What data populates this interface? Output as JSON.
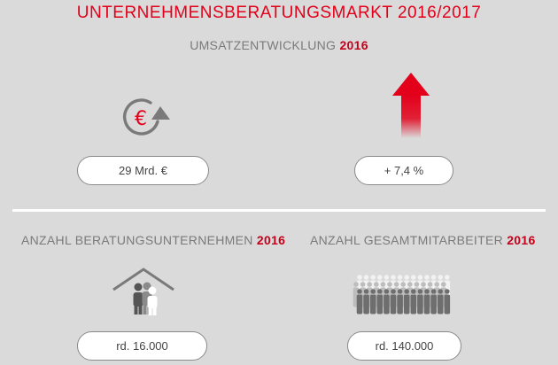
{
  "title": "UNTERNEHMENSBERATUNGSMARKT 2016/2017",
  "revenue": {
    "heading": "UMSATZENTWICKLUNG",
    "year": "2016",
    "value": "29 Mrd. €",
    "growth": "+ 7,4 %",
    "currency_icon": "euro-cycle-icon",
    "growth_icon": "up-arrow-icon"
  },
  "companies": {
    "heading": "ANZAHL BERATUNGSUNTERNEHMEN",
    "year": "2016",
    "value": "rd. 16.000",
    "icon": "house-people-icon"
  },
  "employees": {
    "heading": "ANZAHL GESAMTMITARBEITER",
    "year": "2016",
    "value": "rd. 140.000",
    "icon": "crowd-icon"
  },
  "colors": {
    "accent": "#e2001a",
    "background": "#dadada",
    "icon_gray": "#7a7a7a"
  }
}
